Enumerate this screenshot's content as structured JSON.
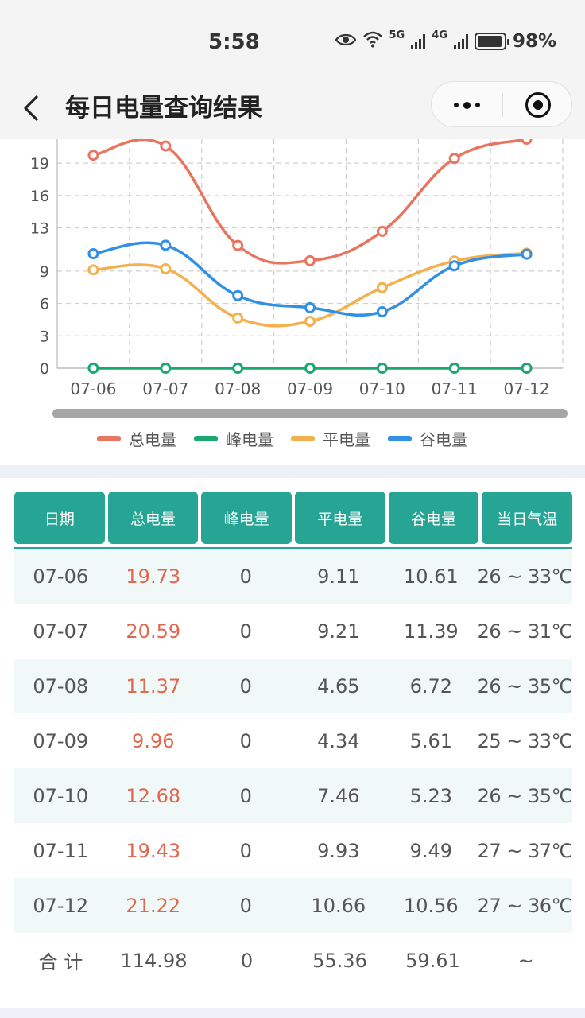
{
  "status_bar": {
    "time": "5:58",
    "net_5g": "5G",
    "net_4g": "4G",
    "battery": "98%"
  },
  "nav": {
    "back_label": "<",
    "title": "每日电量查询结果",
    "more_label": "more",
    "target_label": "target"
  },
  "chart_data": {
    "type": "line",
    "categories": [
      "07-06",
      "07-07",
      "07-08",
      "07-09",
      "07-10",
      "07-11",
      "07-12"
    ],
    "y_ticks": [
      "0",
      "3",
      "6",
      "9",
      "13",
      "16",
      "19"
    ],
    "ylim": [
      0,
      21.22
    ],
    "series": [
      {
        "name": "总电量",
        "color": "#e87560",
        "values": [
          19.73,
          20.59,
          11.37,
          9.96,
          12.68,
          19.43,
          21.22
        ]
      },
      {
        "name": "峰电量",
        "color": "#1aa86f",
        "values": [
          0,
          0,
          0,
          0,
          0,
          0,
          0
        ]
      },
      {
        "name": "平电量",
        "color": "#f5b04e",
        "values": [
          9.11,
          9.21,
          4.65,
          4.34,
          7.46,
          9.93,
          10.66
        ]
      },
      {
        "name": "谷电量",
        "color": "#3190e6",
        "values": [
          10.61,
          11.39,
          6.72,
          5.61,
          5.23,
          9.49,
          10.56
        ]
      }
    ],
    "grid": true,
    "legend_position": "bottom"
  },
  "table": {
    "headers": [
      "日期",
      "总电量",
      "峰电量",
      "平电量",
      "谷电量",
      "当日气温"
    ],
    "rows": [
      [
        "07-06",
        "19.73",
        "0",
        "9.11",
        "10.61",
        "26 ~ 33℃"
      ],
      [
        "07-07",
        "20.59",
        "0",
        "9.21",
        "11.39",
        "26 ~ 31℃"
      ],
      [
        "07-08",
        "11.37",
        "0",
        "4.65",
        "6.72",
        "26 ~ 35℃"
      ],
      [
        "07-09",
        "9.96",
        "0",
        "4.34",
        "5.61",
        "25 ~ 33℃"
      ],
      [
        "07-10",
        "12.68",
        "0",
        "7.46",
        "5.23",
        "26 ~ 35℃"
      ],
      [
        "07-11",
        "19.43",
        "0",
        "9.93",
        "9.49",
        "27 ~ 37℃"
      ],
      [
        "07-12",
        "21.22",
        "0",
        "10.66",
        "10.56",
        "27 ~ 36℃"
      ]
    ],
    "sum": [
      "合 计",
      "114.98",
      "0",
      "55.36",
      "59.61",
      "~"
    ]
  }
}
